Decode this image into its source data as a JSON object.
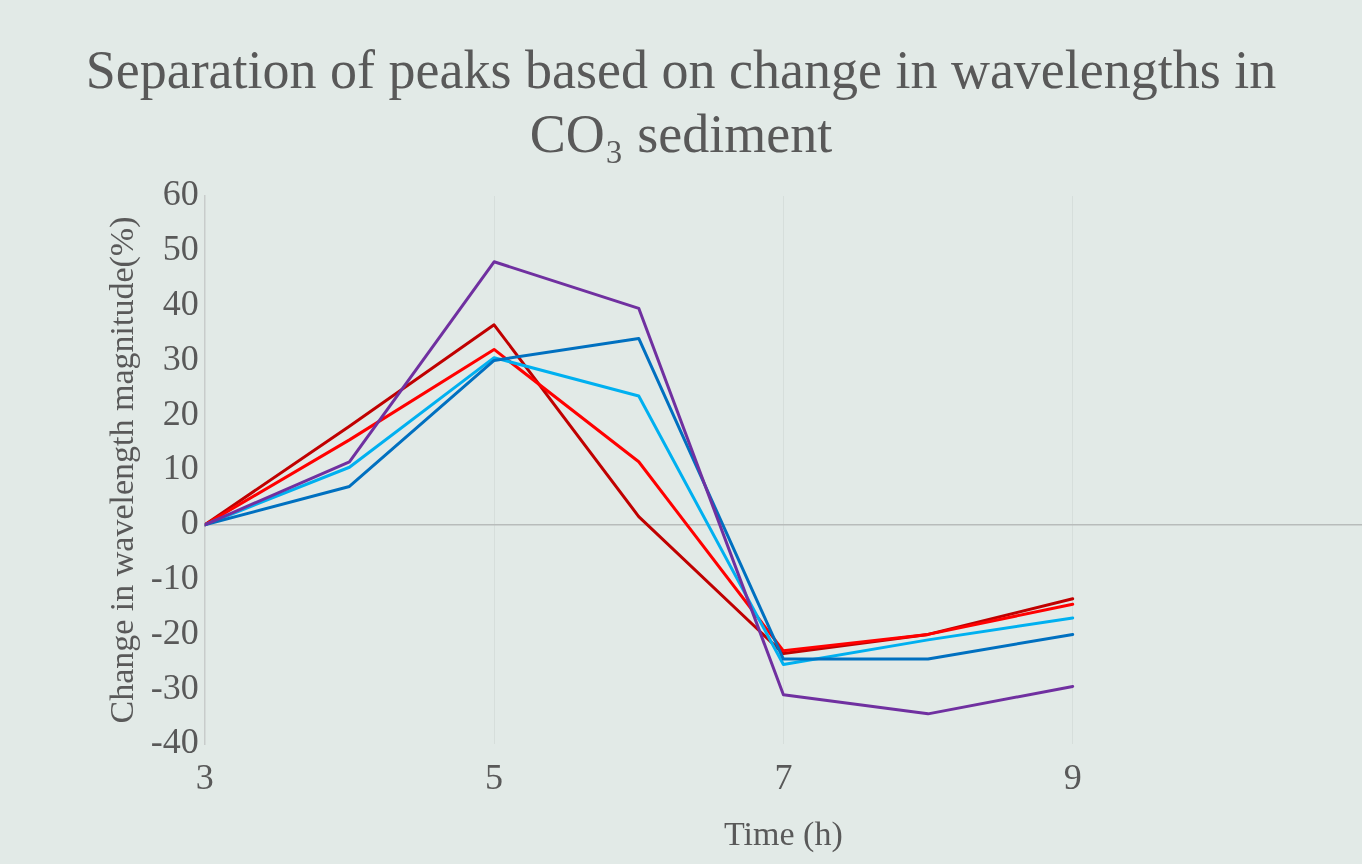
{
  "chart_data": {
    "type": "line",
    "title": "Separation of peaks based on change in wavelengths in CO₃ sediment",
    "xlabel": "Time (h)",
    "ylabel": "Change in wavelength magnitude(%)",
    "x": [
      3,
      4,
      5,
      6,
      7,
      8,
      9
    ],
    "series": [
      {
        "color": "#7030a0",
        "values": [
          0,
          11.5,
          48,
          39.5,
          -31,
          -34.5,
          -29.5
        ]
      },
      {
        "color": "#0070c0",
        "values": [
          0,
          7,
          30,
          34,
          -24.5,
          -24.5,
          -20
        ]
      },
      {
        "color": "#00b0f0",
        "values": [
          0,
          10.5,
          30.5,
          23.5,
          -25.5,
          -21,
          -17
        ]
      },
      {
        "color": "#ff0000",
        "values": [
          0,
          15.5,
          32,
          11.5,
          -23,
          -20,
          -14.5
        ]
      },
      {
        "color": "#c00000",
        "values": [
          0,
          18,
          36.5,
          1.5,
          -23.5,
          -20,
          -13.5
        ]
      }
    ],
    "xlim": [
      3,
      11
    ],
    "xticks": [
      3,
      5,
      7,
      9
    ],
    "ylim": [
      -40,
      60
    ],
    "yticks": [
      -40,
      -30,
      -20,
      -10,
      0,
      10,
      20,
      30,
      40,
      50,
      60
    ],
    "grid": "x",
    "legend": false,
    "marker": "none",
    "line_style": "solid"
  }
}
